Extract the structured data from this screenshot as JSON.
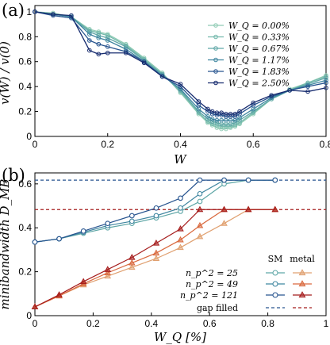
{
  "chart_data": [
    {
      "panel_label": "(a)",
      "type": "line",
      "xlabel": "W",
      "ylabel": "v(W) / v(0)",
      "xlim": [
        0,
        0.8
      ],
      "ylim": [
        0,
        1.05
      ],
      "xticks": [
        "0",
        "0.2",
        "0.4",
        "0.6",
        "0.8"
      ],
      "yticks": [
        "0",
        "0.2",
        "0.4",
        "0.6",
        "0.8",
        "1"
      ],
      "legend_position": "top-right",
      "legend_title": "",
      "x": [
        0,
        0.05,
        0.1,
        0.15,
        0.175,
        0.2,
        0.25,
        0.3,
        0.35,
        0.4,
        0.45,
        0.475,
        0.4875,
        0.5,
        0.5125,
        0.525,
        0.5375,
        0.55,
        0.5625,
        0.6,
        0.65,
        0.7,
        0.75,
        0.8
      ],
      "series": [
        {
          "name": "W_Q = 0.00%",
          "color": "#8fcbb4",
          "values": [
            1.0,
            0.99,
            0.96,
            0.86,
            0.84,
            0.82,
            0.74,
            0.63,
            0.51,
            0.35,
            0.18,
            0.11,
            0.09,
            0.07,
            0.06,
            0.06,
            0.07,
            0.08,
            0.1,
            0.18,
            0.3,
            0.38,
            0.43,
            0.49
          ]
        },
        {
          "name": "W_Q = 0.33%",
          "color": "#73b9ac",
          "values": [
            1.0,
            0.98,
            0.96,
            0.85,
            0.83,
            0.81,
            0.73,
            0.62,
            0.5,
            0.36,
            0.19,
            0.12,
            0.1,
            0.09,
            0.08,
            0.08,
            0.08,
            0.09,
            0.11,
            0.19,
            0.3,
            0.37,
            0.43,
            0.48
          ]
        },
        {
          "name": "W_Q = 0.67%",
          "color": "#5ea6a6",
          "values": [
            1.0,
            0.98,
            0.96,
            0.84,
            0.81,
            0.79,
            0.72,
            0.61,
            0.5,
            0.37,
            0.2,
            0.14,
            0.12,
            0.11,
            0.1,
            0.1,
            0.1,
            0.11,
            0.13,
            0.2,
            0.3,
            0.37,
            0.42,
            0.47
          ]
        },
        {
          "name": "W_Q = 1.17%",
          "color": "#3f86a0",
          "values": [
            1.0,
            0.98,
            0.96,
            0.82,
            0.79,
            0.77,
            0.7,
            0.6,
            0.49,
            0.38,
            0.22,
            0.16,
            0.14,
            0.13,
            0.13,
            0.13,
            0.13,
            0.13,
            0.15,
            0.22,
            0.31,
            0.37,
            0.41,
            0.45
          ]
        },
        {
          "name": "W_Q = 1.83%",
          "color": "#27548f",
          "values": [
            1.0,
            0.97,
            0.95,
            0.77,
            0.74,
            0.72,
            0.68,
            0.6,
            0.48,
            0.4,
            0.25,
            0.2,
            0.18,
            0.17,
            0.17,
            0.16,
            0.16,
            0.16,
            0.18,
            0.25,
            0.32,
            0.37,
            0.4,
            0.43
          ]
        },
        {
          "name": "W_Q = 2.50%",
          "color": "#152a6e",
          "values": [
            1.0,
            0.98,
            0.97,
            0.69,
            0.66,
            0.67,
            0.67,
            0.59,
            0.48,
            0.42,
            0.28,
            0.22,
            0.2,
            0.19,
            0.19,
            0.18,
            0.18,
            0.18,
            0.2,
            0.27,
            0.33,
            0.37,
            0.36,
            0.39
          ]
        }
      ]
    },
    {
      "panel_label": "(b)",
      "type": "line",
      "xlabel": "W_Q [%]",
      "ylabel": "minibandwidth D_MB",
      "xlim": [
        0,
        1
      ],
      "ylim": [
        0,
        0.65
      ],
      "xticks": [
        "0",
        "0.2",
        "0.4",
        "0.6",
        "0.8",
        "1"
      ],
      "yticks": [
        "0",
        "0.2",
        "0.4",
        "0.6"
      ],
      "legend_position": "bottom-right",
      "legend_headers": [
        "SM",
        "metal"
      ],
      "legend_rows": [
        "n_p^2 = 25",
        "n_p^2 = 49",
        "n_p^2 = 121"
      ],
      "legend_gap_label": "gap filled",
      "x": [
        0,
        0.0833,
        0.1667,
        0.25,
        0.3333,
        0.4167,
        0.5,
        0.5667,
        0.65,
        0.7333,
        0.825
      ],
      "gap_filled": {
        "sm": 0.617,
        "metal": 0.483,
        "sm_color": "#27548f",
        "metal_color": "#a51c1c"
      },
      "series": [
        {
          "name": "n_p^2 = 25",
          "group": "SM",
          "marker": "circle",
          "color": "#5ea6a6",
          "values": [
            0.335,
            0.35,
            0.375,
            0.4,
            0.42,
            0.445,
            0.475,
            0.52,
            0.6,
            0.617,
            0.617
          ]
        },
        {
          "name": "n_p^2 = 49",
          "group": "SM",
          "marker": "circle",
          "color": "#3f86a0",
          "values": [
            0.335,
            0.35,
            0.38,
            0.41,
            0.43,
            0.455,
            0.49,
            0.555,
            0.617,
            0.617,
            0.617
          ]
        },
        {
          "name": "n_p^2 = 121",
          "group": "SM",
          "marker": "circle",
          "color": "#27548f",
          "values": [
            0.335,
            0.35,
            0.385,
            0.42,
            0.455,
            0.49,
            0.535,
            0.617,
            0.617,
            0.617,
            0.617
          ]
        },
        {
          "name": "n_p^2 = 25",
          "group": "metal",
          "marker": "triangle",
          "color": "#e0a070",
          "values": [
            0.04,
            0.09,
            0.14,
            0.18,
            0.22,
            0.26,
            0.31,
            0.36,
            0.42,
            0.483,
            0.483
          ]
        },
        {
          "name": "n_p^2 = 49",
          "group": "metal",
          "marker": "triangle",
          "color": "#d9683d",
          "values": [
            0.04,
            0.09,
            0.145,
            0.195,
            0.24,
            0.285,
            0.345,
            0.41,
            0.483,
            0.483,
            0.483
          ]
        },
        {
          "name": "n_p^2 = 121",
          "group": "metal",
          "marker": "triangle",
          "color": "#a51c1c",
          "values": [
            0.04,
            0.095,
            0.155,
            0.21,
            0.265,
            0.33,
            0.395,
            0.483,
            0.483,
            0.483,
            0.483
          ]
        }
      ]
    }
  ]
}
